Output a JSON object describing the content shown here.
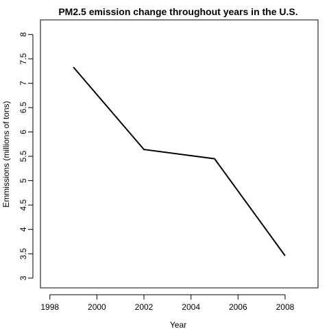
{
  "chart_data": {
    "type": "line",
    "title": "PM2.5 emission change throughout years in the U.S.",
    "xlabel": "Year",
    "ylabel": "Emmissions (millions of tons)",
    "x": [
      1999,
      2002,
      2005,
      2008
    ],
    "series": [
      {
        "values": [
          7.33,
          5.64,
          5.45,
          3.46
        ]
      }
    ],
    "xlim": [
      1997.6,
      2009.4
    ],
    "ylim": [
      2.8,
      8.3
    ],
    "xticks": [
      1998,
      2000,
      2002,
      2004,
      2006,
      2008
    ],
    "yticks": [
      3,
      3.5,
      4,
      4.5,
      5,
      5.5,
      6,
      6.5,
      7,
      7.5,
      8
    ],
    "xtick_labels": [
      "1998",
      "2000",
      "2002",
      "2004",
      "2006",
      "2008"
    ],
    "ytick_labels": [
      "3",
      "3.5",
      "4",
      "4.5",
      "5",
      "5.5",
      "6",
      "6.5",
      "7",
      "7.5",
      "8"
    ],
    "line_color": "#000000",
    "grid": false
  }
}
